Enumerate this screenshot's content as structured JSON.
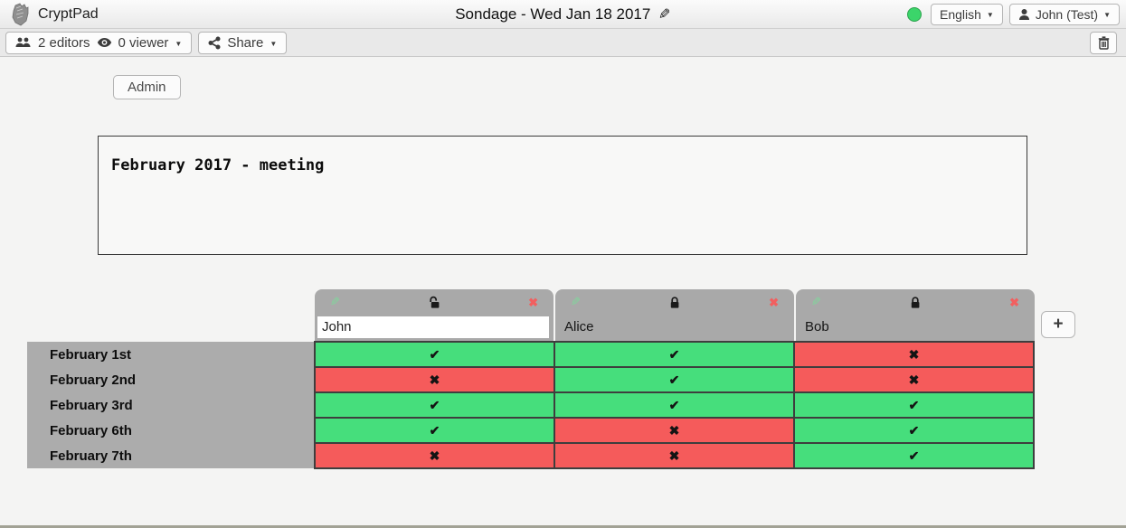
{
  "window": {
    "app_name": "CryptPad",
    "title": "Sondage - Wed Jan 18 2017",
    "language": "English",
    "user_menu": "John (Test)"
  },
  "toolbar": {
    "editors": "2 editors",
    "viewers": "0 viewer",
    "share": "Share"
  },
  "content": {
    "admin_button": "Admin",
    "description": "February 2017 - meeting",
    "add_column": "+"
  },
  "poll": {
    "columns": [
      {
        "name": "John",
        "locked": false,
        "editable": true
      },
      {
        "name": "Alice",
        "locked": true,
        "editable": false
      },
      {
        "name": "Bob",
        "locked": true,
        "editable": false
      }
    ],
    "rows": [
      "February 1st",
      "February 2nd",
      "February 3rd",
      "February 6th",
      "February 7th"
    ],
    "votes": [
      [
        "yes",
        "yes",
        "no"
      ],
      [
        "no",
        "yes",
        "no"
      ],
      [
        "yes",
        "yes",
        "yes"
      ],
      [
        "yes",
        "no",
        "yes"
      ],
      [
        "no",
        "no",
        "yes"
      ]
    ]
  },
  "icons": {
    "yes_mark": "✔",
    "no_mark": "✖",
    "caret": "▼",
    "edit_pencil": "✎"
  },
  "colors": {
    "yes_green": "#46DE7C",
    "no_red": "#F55B5B",
    "header_gray": "#A9A9A9",
    "status_green": "#3BD56A"
  }
}
